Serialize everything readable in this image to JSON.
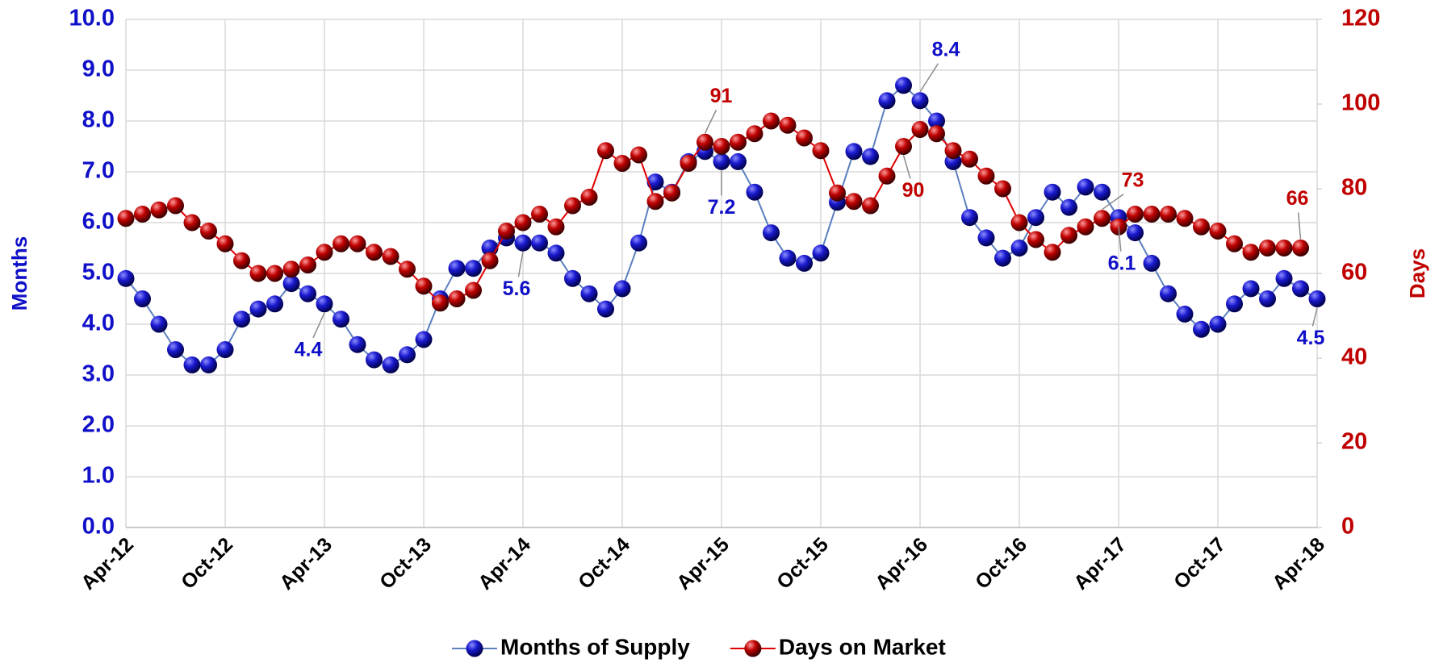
{
  "chart_data": {
    "type": "line",
    "categories": [
      "Apr-12",
      null,
      null,
      null,
      null,
      null,
      "Oct-12",
      null,
      null,
      null,
      null,
      null,
      "Apr-13",
      null,
      null,
      null,
      null,
      null,
      "Oct-13",
      null,
      null,
      null,
      null,
      null,
      "Apr-14",
      null,
      null,
      null,
      null,
      null,
      "Oct-14",
      null,
      null,
      null,
      null,
      null,
      "Apr-15",
      null,
      null,
      null,
      null,
      null,
      "Oct-15",
      null,
      null,
      null,
      null,
      null,
      "Apr-16",
      null,
      null,
      null,
      null,
      null,
      "Oct-16",
      null,
      null,
      null,
      null,
      null,
      "Apr-17",
      null,
      null,
      null,
      null,
      null,
      "Oct-17",
      null,
      null,
      null,
      null,
      null,
      "Apr-18"
    ],
    "y_label": "Months",
    "y2_label": "Days",
    "ylim": [
      0,
      10
    ],
    "yticks": [
      {
        "value": 0,
        "label": "0.0"
      },
      {
        "value": 1,
        "label": "1.0"
      },
      {
        "value": 2,
        "label": "2.0"
      },
      {
        "value": 3,
        "label": "3.0"
      },
      {
        "value": 4,
        "label": "4.0"
      },
      {
        "value": 5,
        "label": "5.0"
      },
      {
        "value": 6,
        "label": "6.0"
      },
      {
        "value": 7,
        "label": "7.0"
      },
      {
        "value": 8,
        "label": "8.0"
      },
      {
        "value": 9,
        "label": "9.0"
      },
      {
        "value": 10,
        "label": "10.0"
      }
    ],
    "y2lim": [
      0,
      120
    ],
    "y2ticks": [
      0,
      20,
      40,
      60,
      80,
      100,
      120
    ],
    "grid": true,
    "legend": "bottom",
    "series": [
      {
        "name": "Months of Supply",
        "color": "#1010c8",
        "line_color": "#5b7fc0",
        "axis": "y",
        "values": [
          4.9,
          4.5,
          4.0,
          3.5,
          3.2,
          3.2,
          3.5,
          4.1,
          4.3,
          4.4,
          4.8,
          4.6,
          4.4,
          4.1,
          3.6,
          3.3,
          3.2,
          3.4,
          3.7,
          4.5,
          5.1,
          5.1,
          5.5,
          5.7,
          5.6,
          5.6,
          5.4,
          4.9,
          4.6,
          4.3,
          4.7,
          5.6,
          6.8,
          6.6,
          7.2,
          7.4,
          7.2,
          7.2,
          6.6,
          5.8,
          5.3,
          5.2,
          5.4,
          6.4,
          7.4,
          7.3,
          8.4,
          8.7,
          8.4,
          8.0,
          7.2,
          6.1,
          5.7,
          5.3,
          5.5,
          6.1,
          6.6,
          6.3,
          6.7,
          6.6,
          6.1,
          5.8,
          5.2,
          4.6,
          4.2,
          3.9,
          4.0,
          4.4,
          4.7,
          4.5,
          4.9,
          4.7,
          4.5
        ],
        "value_labels": [
          null,
          null,
          null,
          null,
          null,
          null,
          null,
          null,
          null,
          null,
          null,
          null,
          "4.4",
          null,
          null,
          null,
          null,
          null,
          null,
          null,
          null,
          null,
          null,
          null,
          "5.6",
          null,
          null,
          null,
          null,
          null,
          null,
          null,
          null,
          null,
          null,
          null,
          "7.2",
          null,
          null,
          null,
          null,
          null,
          null,
          null,
          null,
          null,
          null,
          null,
          "8.4",
          null,
          null,
          null,
          null,
          null,
          null,
          null,
          null,
          null,
          null,
          null,
          "6.1",
          null,
          null,
          null,
          null,
          null,
          null,
          null,
          null,
          null,
          null,
          null,
          "4.5"
        ]
      },
      {
        "name": "Days on Market",
        "color": "#c00000",
        "line_color": "#e00000",
        "axis": "y2",
        "values": [
          73,
          74,
          75,
          76,
          72,
          70,
          67,
          63,
          60,
          60,
          61,
          62,
          65,
          67,
          67,
          65,
          64,
          61,
          57,
          53,
          54,
          56,
          63,
          70,
          72,
          74,
          71,
          76,
          78,
          89,
          86,
          88,
          77,
          79,
          86,
          91,
          90,
          91,
          93,
          96,
          95,
          92,
          89,
          79,
          77,
          76,
          83,
          90,
          94,
          93,
          89,
          87,
          83,
          80,
          72,
          68,
          65,
          69,
          71,
          73,
          71,
          74,
          74,
          74,
          73,
          71,
          70,
          67,
          65,
          66,
          66,
          66,
          null
        ],
        "value_labels": [
          null,
          null,
          null,
          null,
          null,
          null,
          null,
          null,
          null,
          null,
          null,
          null,
          null,
          null,
          null,
          null,
          null,
          null,
          null,
          null,
          null,
          null,
          null,
          null,
          null,
          null,
          null,
          null,
          null,
          null,
          null,
          null,
          null,
          null,
          null,
          "91",
          null,
          null,
          null,
          null,
          null,
          null,
          null,
          null,
          null,
          null,
          null,
          "90",
          null,
          null,
          null,
          null,
          null,
          null,
          null,
          null,
          null,
          null,
          null,
          "73",
          null,
          null,
          null,
          null,
          null,
          null,
          null,
          null,
          null,
          null,
          null,
          "66",
          null
        ]
      }
    ]
  }
}
